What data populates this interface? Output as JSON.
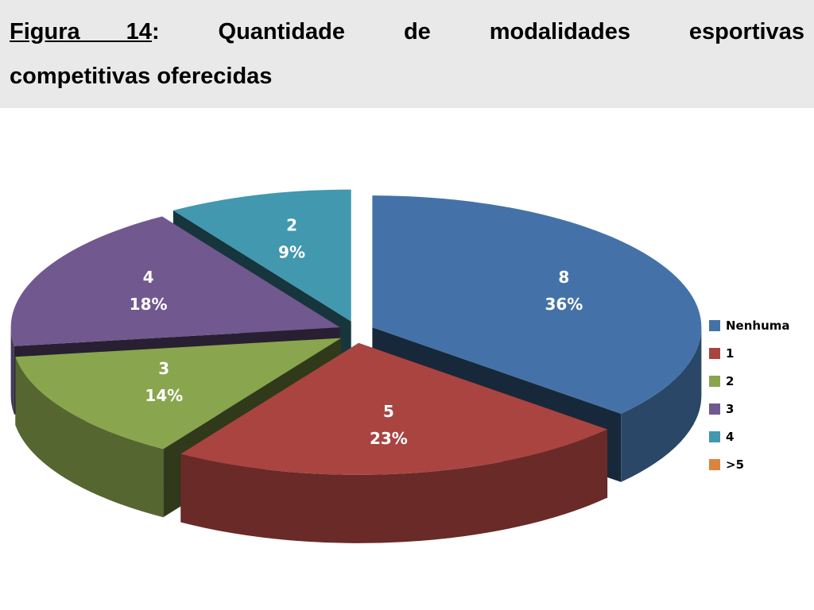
{
  "header": {
    "figure_label": "Figura 14",
    "colon": ":",
    "title_line1_words": [
      "Quantidade",
      "de",
      "modalidades",
      "esportivas"
    ],
    "title_line2": "competitivas oferecidas"
  },
  "chart_data": {
    "type": "pie",
    "style": "3d-exploded",
    "title": "Figura 14: Quantidade de modalidades esportivas competitivas oferecidas",
    "legend_position": "right",
    "slices": [
      {
        "category": "Nenhuma",
        "value": 8,
        "percent_label": "36%",
        "color": "#4472a8"
      },
      {
        "category": "1",
        "value": 5,
        "percent_label": "23%",
        "color": "#aa4441"
      },
      {
        "category": "2",
        "value": 3,
        "percent_label": "14%",
        "color": "#89a54e"
      },
      {
        "category": "3",
        "value": 4,
        "percent_label": "18%",
        "color": "#71588f"
      },
      {
        "category": "4",
        "value": 2,
        "percent_label": "9%",
        "color": "#4198af"
      },
      {
        "category": ">5",
        "value": 0,
        "percent_label": "",
        "color": "#db843d"
      }
    ]
  }
}
